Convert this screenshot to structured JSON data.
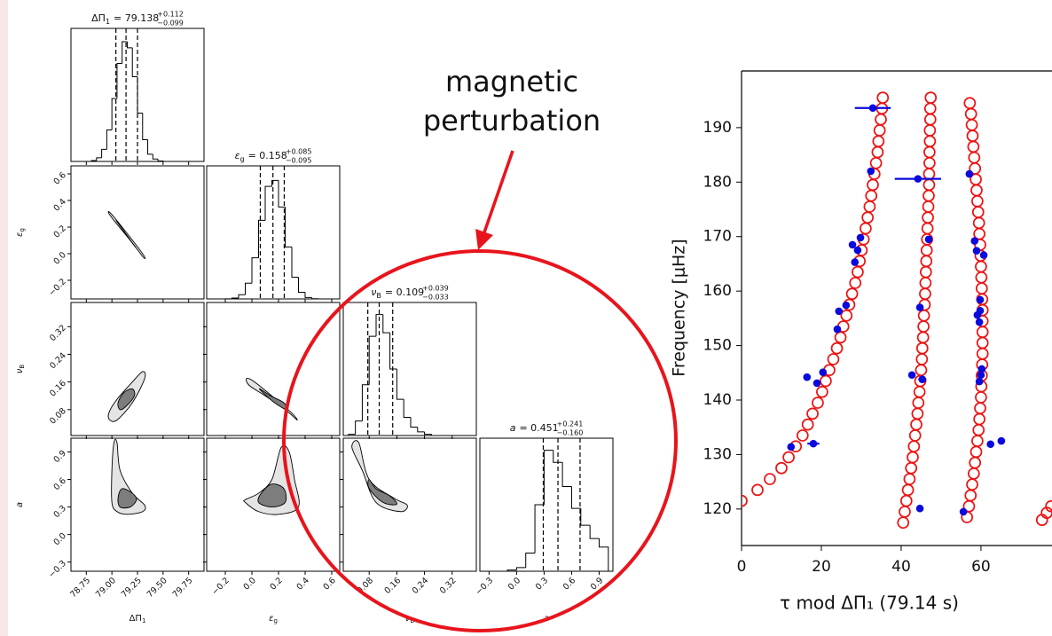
{
  "annotation": {
    "line1": "magnetic",
    "line2": "perturbation"
  },
  "chart_data": [
    {
      "type": "corner",
      "contour_colors": [
        "#e4e4e4",
        "#7d7d7d"
      ],
      "params": [
        {
          "label_symbol": "ΔΠ",
          "label_sub": "1",
          "title_value": "= 79.138",
          "median": 79.138,
          "err_plus": 0.112,
          "err_minus": 0.099,
          "err_plus_label": "+0.112",
          "err_minus_label": "−0.099",
          "lim": [
            78.6,
            79.9
          ],
          "ticks": [
            78.75,
            {
              "value": 79,
              "label": "79.00"
            },
            79.25,
            {
              "value": 79.5,
              "label": "79.50"
            },
            79.75
          ],
          "hist": {
            "ylim": [
              0,
              1.1
            ],
            "bins": [
              78.8,
              78.85,
              78.9,
              78.95,
              79.0,
              79.05,
              79.1,
              79.15,
              79.2,
              79.25,
              79.3,
              79.35,
              79.4,
              79.45,
              79.5
            ],
            "counts": [
              0.007,
              0.03,
              0.1,
              0.26,
              0.52,
              0.81,
              0.99,
              0.94,
              0.7,
              0.4,
              0.18,
              0.06,
              0.02,
              0.004
            ]
          }
        },
        {
          "label_symbol": "ε",
          "label_sub": "g",
          "title_value": "= 0.158",
          "median": 0.158,
          "err_plus": 0.085,
          "err_minus": 0.095,
          "err_plus_label": "+0.085",
          "err_minus_label": "−0.095",
          "lim": [
            -0.34,
            0.66
          ],
          "ticks": [
            {
              "value": -0.2,
              "label": "−0.2"
            },
            {
              "value": 0,
              "label": "0.0"
            },
            0.2,
            0.4,
            0.6
          ],
          "hist": {
            "ylim": [
              0,
              1.1
            ],
            "bins": [
              -0.2,
              -0.15,
              -0.1,
              -0.05,
              0,
              0.05,
              0.1,
              0.15,
              0.2,
              0.25,
              0.3,
              0.35,
              0.4,
              0.45,
              0.5,
              0.55
            ],
            "counts": [
              0.001,
              0.007,
              0.035,
              0.13,
              0.34,
              0.65,
              0.93,
              0.98,
              0.76,
              0.43,
              0.18,
              0.055,
              0.012,
              0.002,
              0
            ]
          }
        },
        {
          "label_symbol": "ν",
          "label_sub": "B",
          "title_value": "= 0.109",
          "median": 0.109,
          "err_plus": 0.039,
          "err_minus": 0.033,
          "err_plus_label": "+0.039",
          "err_minus_label": "−0.033",
          "lim": [
            0.005,
            0.39
          ],
          "ticks": [
            0.08,
            0.16,
            0.24,
            0.32
          ],
          "hist": {
            "ylim": [
              0,
              1.1
            ],
            "bins": [
              0.02,
              0.04,
              0.06,
              0.08,
              0.1,
              0.12,
              0.14,
              0.16,
              0.18,
              0.2,
              0.22,
              0.24,
              0.26
            ],
            "counts": [
              0.01,
              0.12,
              0.42,
              0.82,
              1.0,
              0.85,
              0.55,
              0.3,
              0.15,
              0.07,
              0.03,
              0.01
            ]
          }
        },
        {
          "label_symbol": "a",
          "title_value": "= 0.451",
          "median": 0.451,
          "err_plus": 0.241,
          "err_minus": 0.16,
          "err_plus_label": "+0.241",
          "err_minus_label": "−0.160",
          "lim": [
            -0.4,
            1.05
          ],
          "ticks": [
            {
              "value": -0.3,
              "label": "−0.3"
            },
            {
              "value": 0,
              "label": "0.0"
            },
            0.3,
            0.6,
            0.9
          ],
          "hist": {
            "ylim": [
              0,
              1.1
            ],
            "bins": [
              -0.1,
              0,
              0.1,
              0.2,
              0.3,
              0.4,
              0.5,
              0.6,
              0.7,
              0.8,
              0.9,
              1.0
            ],
            "counts": [
              0.01,
              0.03,
              0.15,
              0.55,
              1.0,
              0.9,
              0.7,
              0.52,
              0.38,
              0.27,
              0.2
            ]
          }
        }
      ],
      "panels": [
        {
          "row": 1,
          "col": 0,
          "contours": [
            {
              "x": [
                78.98,
                79.1,
                79.3,
                79.31,
                79.2,
                78.99
              ],
              "y": [
                0.31,
                0.2,
                0.0,
                -0.03,
                0.08,
                0.28
              ]
            },
            {
              "x": [
                79.05,
                79.2,
                79.22,
                79.08
              ],
              "y": [
                0.24,
                0.08,
                0.06,
                0.21
              ]
            }
          ]
        },
        {
          "row": 2,
          "col": 0,
          "contours": [
            {
              "x": [
                78.98,
                79.05,
                79.2,
                79.32,
                79.3,
                79.2,
                79.05,
                78.97
              ],
              "y": [
                0.05,
                0.05,
                0.1,
                0.17,
                0.19,
                0.16,
                0.11,
                0.07
              ]
            },
            {
              "x": [
                79.08,
                79.14,
                79.22,
                79.2,
                79.12,
                79.06
              ],
              "y": [
                0.08,
                0.09,
                0.12,
                0.14,
                0.13,
                0.1
              ]
            }
          ]
        },
        {
          "row": 2,
          "col": 1,
          "contours": [
            {
              "x": [
                -0.02,
                0.1,
                0.25,
                0.34,
                0.3,
                0.18,
                0.02,
                -0.04
              ],
              "y": [
                0.15,
                0.12,
                0.08,
                0.05,
                0.07,
                0.11,
                0.16,
                0.17
              ]
            },
            {
              "x": [
                0.08,
                0.17,
                0.26,
                0.24,
                0.14,
                0.06
              ],
              "y": [
                0.13,
                0.1,
                0.08,
                0.1,
                0.12,
                0.14
              ]
            }
          ]
        },
        {
          "row": 3,
          "col": 0,
          "contours": [
            {
              "x": [
                79.0,
                79.05,
                79.15,
                79.3,
                79.32,
                79.2,
                79.08,
                79.05,
                79.02,
                79.0
              ],
              "y": [
                0.35,
                0.25,
                0.22,
                0.25,
                0.32,
                0.45,
                0.7,
                1.0,
                1.0,
                0.7
              ]
            },
            {
              "x": [
                79.08,
                79.18,
                79.24,
                79.2,
                79.1,
                79.06
              ],
              "y": [
                0.3,
                0.3,
                0.38,
                0.45,
                0.5,
                0.4
              ]
            }
          ]
        },
        {
          "row": 3,
          "col": 1,
          "contours": [
            {
              "x": [
                -0.05,
                0.05,
                0.2,
                0.35,
                0.32,
                0.28,
                0.22,
                0.15,
                0.05,
                -0.05
              ],
              "y": [
                0.35,
                0.25,
                0.22,
                0.3,
                0.6,
                0.9,
                0.95,
                0.6,
                0.45,
                0.38
              ]
            },
            {
              "x": [
                0.05,
                0.15,
                0.25,
                0.24,
                0.15,
                0.07
              ],
              "y": [
                0.35,
                0.3,
                0.35,
                0.5,
                0.55,
                0.45
              ]
            }
          ]
        },
        {
          "row": 3,
          "col": 2,
          "contours": [
            {
              "x": [
                0.03,
                0.06,
                0.1,
                0.17,
                0.19,
                0.15,
                0.08,
                0.05
              ],
              "y": [
                0.95,
                0.7,
                0.35,
                0.25,
                0.32,
                0.4,
                0.6,
                1.0
              ]
            },
            {
              "x": [
                0.08,
                0.12,
                0.16,
                0.14,
                0.1,
                0.08
              ],
              "y": [
                0.5,
                0.35,
                0.33,
                0.42,
                0.5,
                0.6
              ]
            }
          ]
        }
      ]
    },
    {
      "type": "scatter",
      "xlabel": "τ mod ΔΠ₁ (79.14 s)",
      "ylabel": "Frequency [μHz]",
      "xlim": [
        0,
        77.8
      ],
      "ylim": [
        113.3,
        200.4
      ],
      "xticks": [
        0,
        20,
        40,
        60
      ],
      "yticks": [
        120,
        130,
        140,
        150,
        160,
        170,
        180,
        190
      ],
      "series": [
        {
          "color": "#ee1111",
          "marker": "open-circle",
          "x": [
            0,
            4,
            7.1,
            10,
            11.8,
            13.6,
            15.3,
            16.6,
            17.8,
            19.1,
            20.2,
            21.1,
            22.0,
            23.0,
            23.9,
            24.8,
            25.5,
            26.3,
            27.0,
            27.7,
            28.5,
            29.1,
            29.6,
            30.1,
            30.6,
            31.1,
            31.6,
            32.1,
            32.5,
            32.9,
            33.3,
            33.7,
            34.1,
            34.3,
            34.6,
            34.9,
            35.2,
            35.4,
            40.5,
            40.9,
            41.3,
            41.7,
            42.1,
            42.5,
            42.9,
            43.2,
            43.5,
            43.8,
            44.1,
            44.3,
            44.6,
            44.8,
            45.0,
            45.2,
            45.3,
            45.5,
            45.6,
            45.7,
            45.9,
            46.0,
            46.1,
            46.2,
            46.3,
            46.4,
            46.5,
            46.6,
            46.7,
            46.8,
            46.9,
            47.0,
            47.0,
            47.1,
            47.1,
            47.2,
            47.2,
            47.3,
            47.3,
            47.4,
            56.5,
            57.0,
            57.4,
            57.8,
            58.2,
            58.5,
            58.8,
            59.1,
            59.4,
            59.6,
            59.8,
            60.0,
            60.1,
            60.2,
            60.3,
            60.4,
            60.4,
            60.4,
            60.4,
            60.4,
            60.3,
            60.2,
            60.1,
            60.0,
            59.9,
            59.8,
            59.6,
            59.5,
            59.3,
            59.1,
            58.9,
            58.7,
            58.5,
            58.3,
            58.1,
            57.9,
            57.7,
            57.5,
            57.2,
            75.3,
            76.5,
            77.6
          ],
          "y": [
            121.5,
            123.5,
            125.5,
            127.5,
            129.5,
            131.5,
            133.5,
            135.5,
            137.5,
            139.5,
            141.5,
            143.5,
            145.5,
            147.5,
            149.5,
            151.5,
            153.5,
            155.5,
            157.5,
            159.5,
            161.5,
            163.5,
            165.5,
            167.5,
            169.5,
            171.5,
            173.5,
            175.5,
            177.5,
            179.5,
            181.5,
            183.5,
            185.5,
            187.5,
            189.5,
            191.5,
            193.5,
            195.5,
            117.5,
            119.5,
            121.5,
            123.5,
            125.5,
            127.5,
            129.5,
            131.5,
            133.5,
            135.5,
            137.5,
            139.5,
            141.5,
            143.5,
            145.5,
            147.5,
            149.5,
            151.5,
            153.5,
            155.5,
            157.5,
            159.5,
            161.5,
            163.5,
            165.5,
            167.5,
            169.5,
            171.5,
            173.5,
            175.5,
            177.5,
            179.5,
            181.5,
            183.5,
            185.5,
            187.5,
            189.5,
            191.5,
            193.5,
            195.5,
            118.5,
            120.5,
            122.5,
            124.5,
            126.5,
            128.5,
            130.5,
            132.5,
            134.5,
            136.5,
            138.5,
            140.5,
            142.5,
            144.5,
            146.5,
            148.5,
            150.5,
            152.5,
            154.5,
            156.5,
            158.5,
            160.5,
            162.5,
            164.5,
            166.5,
            168.5,
            170.5,
            172.5,
            174.5,
            176.5,
            178.5,
            180.5,
            182.5,
            184.5,
            186.5,
            188.5,
            190.5,
            192.5,
            194.5,
            118,
            119.3,
            120.5
          ]
        },
        {
          "color": "#0a0adf",
          "marker": "dot",
          "x": [
            12.4,
            18.0,
            16.4,
            18.9,
            20.4,
            24.0,
            24.4,
            26.2,
            28.4,
            29.1,
            29.8,
            27.8,
            32.4,
            32.9,
            44.2,
            46.9,
            44.7,
            42.7,
            45.3,
            44.7,
            57.1,
            58.4,
            58.9,
            60.7,
            59.8,
            59.8,
            59.1,
            59.6,
            60.2,
            60.0,
            59.6,
            62.4,
            65.1,
            55.6
          ],
          "y": [
            131.4,
            132.0,
            144.2,
            143.1,
            145.1,
            153.0,
            156.3,
            157.4,
            165.3,
            167.5,
            169.8,
            168.5,
            182.0,
            193.6,
            180.6,
            169.5,
            157.0,
            144.6,
            143.8,
            120.1,
            181.5,
            169.2,
            167.4,
            166.6,
            158.4,
            156.4,
            155.6,
            154.3,
            145.7,
            144.6,
            143.4,
            131.9,
            132.5,
            119.5
          ],
          "xerr": [
            0.3,
            1.5,
            0.3,
            0.3,
            0.3,
            0.3,
            0.3,
            0.3,
            0.3,
            0.3,
            0.3,
            0.8,
            0.3,
            4.5,
            5.8,
            0.3,
            0.3,
            0.3,
            1.0,
            0.6,
            0.3,
            0.3,
            0.3,
            0.3,
            0.3,
            0.3,
            0.3,
            0.3,
            0.3,
            0.3,
            0.6,
            0.6,
            0.3,
            0.3
          ]
        }
      ]
    }
  ]
}
